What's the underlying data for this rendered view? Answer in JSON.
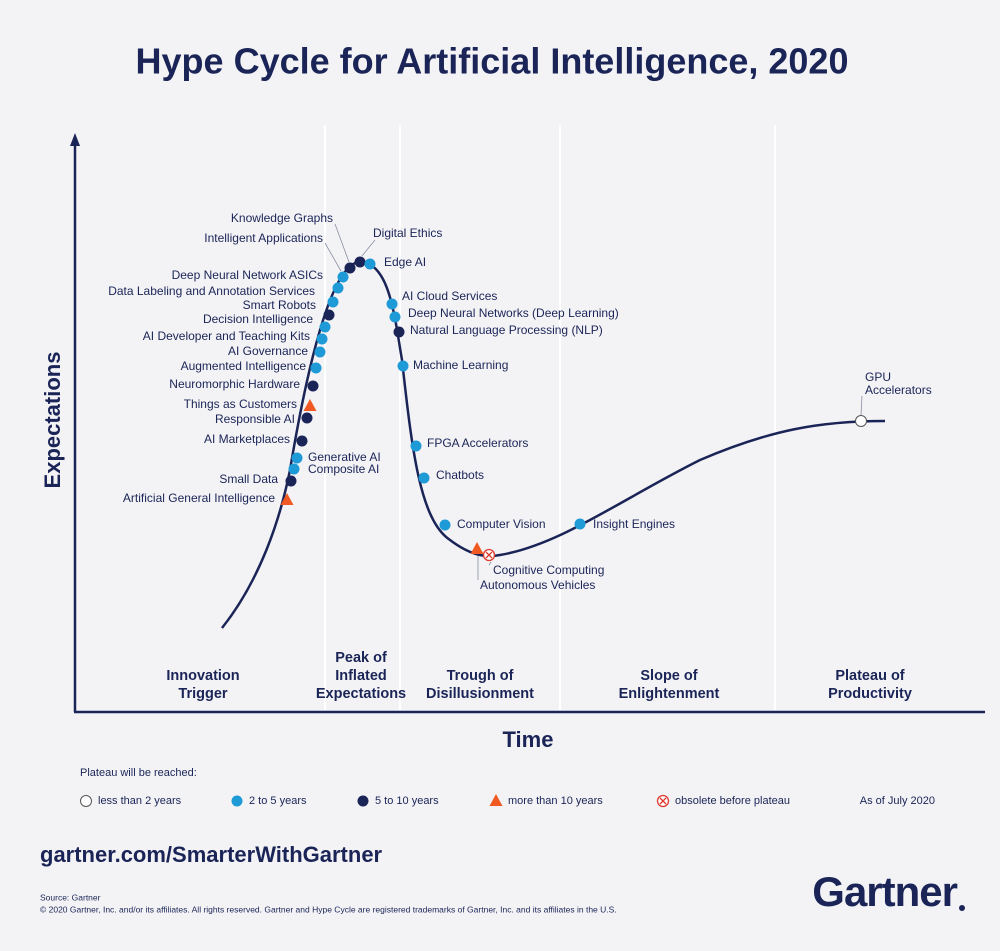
{
  "title": "Hype Cycle for Artificial Intelligence, 2020",
  "y_axis_label": "Expectations",
  "x_axis_label": "Time",
  "phases": [
    {
      "lines": [
        "Innovation",
        "Trigger"
      ]
    },
    {
      "lines": [
        "Peak of",
        "Inflated",
        "Expectations"
      ]
    },
    {
      "lines": [
        "Trough of",
        "Disillusionment"
      ]
    },
    {
      "lines": [
        "Slope of",
        "Enlightenment"
      ]
    },
    {
      "lines": [
        "Plateau of",
        "Productivity"
      ]
    }
  ],
  "technologies": [
    {
      "label": "Knowledge Graphs"
    },
    {
      "label": "Intelligent Applications"
    },
    {
      "label": "Digital Ethics"
    },
    {
      "label": "Edge AI"
    },
    {
      "label": "Deep Neural Network ASICs"
    },
    {
      "label": "Data Labeling and Annotation Services"
    },
    {
      "label": "Smart Robots"
    },
    {
      "label": "Decision Intelligence"
    },
    {
      "label": "AI Developer and Teaching Kits"
    },
    {
      "label": "AI Governance"
    },
    {
      "label": "Augmented Intelligence"
    },
    {
      "label": "Neuromorphic Hardware"
    },
    {
      "label": "Things as Customers"
    },
    {
      "label": "Responsible AI"
    },
    {
      "label": "AI Marketplaces"
    },
    {
      "label": "Generative AI"
    },
    {
      "label": "Composite AI"
    },
    {
      "label": "Small Data"
    },
    {
      "label": "Artificial General Intelligence"
    },
    {
      "label": "AI Cloud Services"
    },
    {
      "label": "Deep Neural Networks (Deep Learning)"
    },
    {
      "label": "Natural Language Processing (NLP)"
    },
    {
      "label": "Machine Learning"
    },
    {
      "label": "FPGA Accelerators"
    },
    {
      "label": "Chatbots"
    },
    {
      "label": "Computer Vision"
    },
    {
      "label": "Cognitive Computing"
    },
    {
      "label": "Autonomous Vehicles"
    },
    {
      "label": "Insight Engines"
    },
    {
      "lines": [
        "GPU",
        "Accelerators"
      ]
    }
  ],
  "legend": {
    "title": "Plateau will be reached:",
    "items": [
      "less than 2 years",
      "2 to 5 years",
      "5 to 10 years",
      "more than 10 years",
      "obsolete before plateau"
    ]
  },
  "as_of": "As of July 2020",
  "url": "gartner.com/SmarterWithGartner",
  "source": "Source: Gartner",
  "copyright": "© 2020 Gartner, Inc. and/or its affiliates. All rights reserved. Gartner and Hype Cycle are registered trademarks of Gartner, Inc. and its affiliates in the U.S.",
  "logo": "Gartner"
}
